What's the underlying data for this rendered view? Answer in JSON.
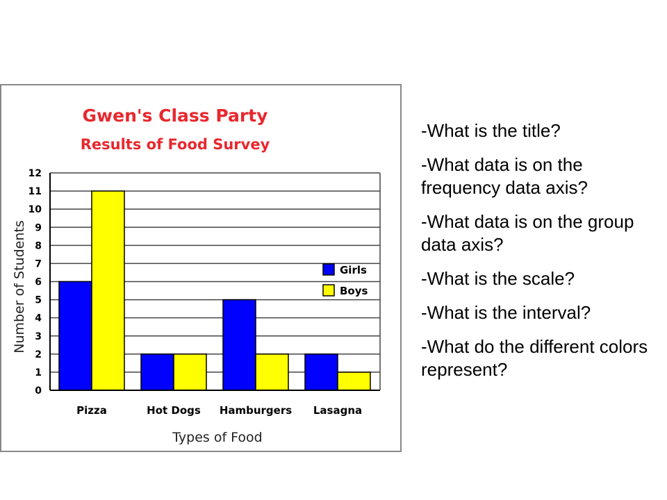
{
  "questions": [
    "-What is the title?",
    "-What data is on the frequency data axis?",
    "-What data is on the group data axis?",
    "-What is the scale?",
    "-What is the interval?",
    "-What do the different colors represent?"
  ],
  "chart_data": {
    "type": "bar",
    "title": "Gwen's Class Party",
    "subtitle": "Results of Food Survey",
    "xlabel": "Types of Food",
    "ylabel": "Number of Students",
    "categories": [
      "Pizza",
      "Hot Dogs",
      "Hamburgers",
      "Lasagna"
    ],
    "series": [
      {
        "name": "Girls",
        "color": "#0000ff",
        "values": [
          6,
          2,
          5,
          2
        ]
      },
      {
        "name": "Boys",
        "color": "#ffff00",
        "values": [
          11,
          2,
          2,
          1
        ]
      }
    ],
    "ylim": [
      0,
      12
    ],
    "yticks": [
      "0",
      "1",
      "2",
      "3",
      "4",
      "5",
      "6",
      "7",
      "8",
      "9",
      "10",
      "11",
      "12"
    ],
    "grid": true,
    "legend_position": "right",
    "colors": {
      "title": "#e8282e",
      "plot_background": "#ffffff",
      "grid": "#444444"
    }
  }
}
